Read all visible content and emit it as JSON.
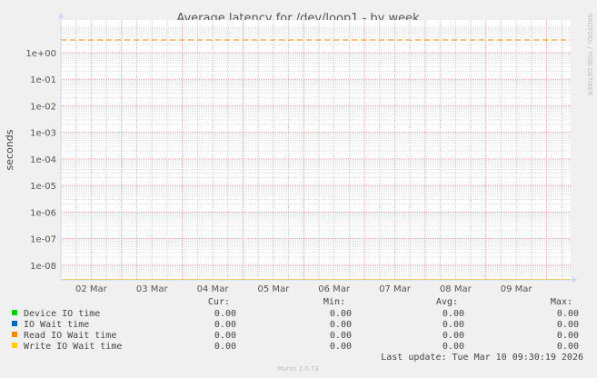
{
  "chart_data": {
    "type": "line",
    "title": "Average latency for /dev/loop1 - by week",
    "ylabel": "seconds",
    "yscale": "log",
    "ylim": [
      2.8e-09,
      17
    ],
    "yticks": [
      "1e+00",
      "1e-01",
      "1e-02",
      "1e-03",
      "1e-04",
      "1e-05",
      "1e-06",
      "1e-07",
      "1e-08"
    ],
    "xlim": [
      "2026-03-02 00:00",
      "2026-03-10 09:30"
    ],
    "xticks": [
      "02 Mar",
      "03 Mar",
      "04 Mar",
      "05 Mar",
      "06 Mar",
      "07 Mar",
      "08 Mar",
      "09 Mar"
    ],
    "grid": true,
    "threshold_line": {
      "value": 3,
      "color": "#ff7f00",
      "style": "dashed"
    },
    "series": [
      {
        "name": "Device IO time",
        "color": "#00cc00",
        "cur": "0.00",
        "min": "0.00",
        "avg": "0.00",
        "max": "0.00"
      },
      {
        "name": "IO Wait time",
        "color": "#0066b3",
        "cur": "0.00",
        "min": "0.00",
        "avg": "0.00",
        "max": "0.00"
      },
      {
        "name": "Read IO Wait time",
        "color": "#ff8000",
        "cur": "0.00",
        "min": "0.00",
        "avg": "0.00",
        "max": "0.00"
      },
      {
        "name": "Write IO Wait time",
        "color": "#ffcc00",
        "cur": "0.00",
        "min": "0.00",
        "avg": "0.00",
        "max": "0.00"
      }
    ],
    "legend_headers": [
      "Cur:",
      "Min:",
      "Avg:",
      "Max:"
    ],
    "last_update": "Last update: Tue Mar 10 09:30:19 2026",
    "watermark": "RRDTOOL / TOBI OETIKER",
    "footer": "Munin 2.0.73"
  }
}
